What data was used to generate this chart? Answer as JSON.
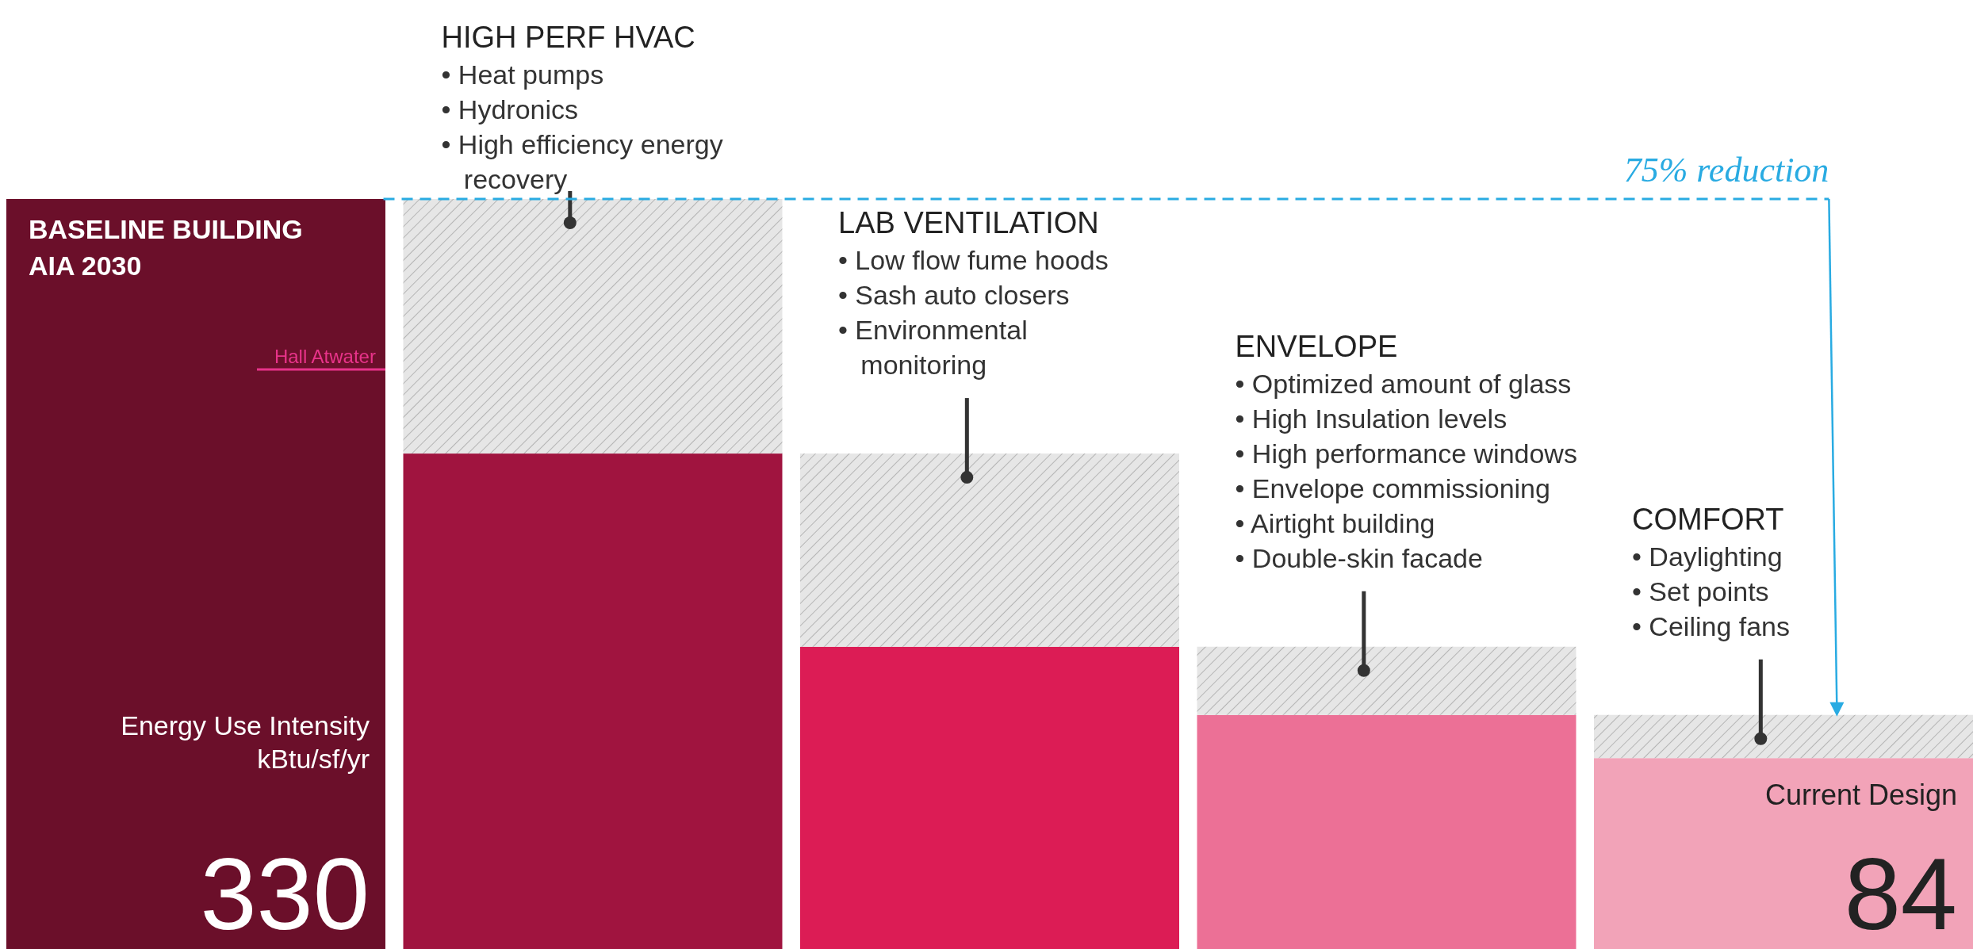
{
  "chart_data": {
    "type": "bar",
    "stacked": true,
    "ylabel": "Energy Use Intensity\nkBtu/sf/yr",
    "categories": [
      null,
      null,
      null,
      null,
      null
    ],
    "series": [
      {
        "colors": [
          "#6b0f2a",
          "#a0143f",
          "#dc1c55",
          "#ec7096",
          "#f2a3b8"
        ],
        "values": [
          330,
          218,
          133,
          103,
          84
        ],
        "value_labels": [
          "330",
          null,
          null,
          null,
          "84"
        ]
      },
      {
        "color": "#e6e6e6",
        "values": [
          null,
          112,
          85,
          30,
          19
        ]
      }
    ],
    "ref_lines": [
      {
        "axis": "y",
        "value": 330,
        "label": "75% reduction",
        "color": "#29abe2",
        "line_style": "dashed"
      }
    ],
    "annotations": [
      "BASELINE BUILDING\nAIA 2030",
      "HIGH PERF HVAC\n• Heat pumps\n• Hydronics\n• High efficiency energy\n   recovery",
      "LAB VENTILATION\n• Low flow fume hoods\n• Sash auto closers\n• Environmental\n   monitoring",
      "ENVELOPE\n• Optimized amount of glass\n• High Insulation levels\n• High performance windows\n• Envelope commissioning\n• Airtight building\n• Double-skin facade",
      "COMFORT\n• Daylighting\n• Set points\n• Ceiling fans",
      "Current Design",
      "Hall Atwater"
    ]
  }
}
